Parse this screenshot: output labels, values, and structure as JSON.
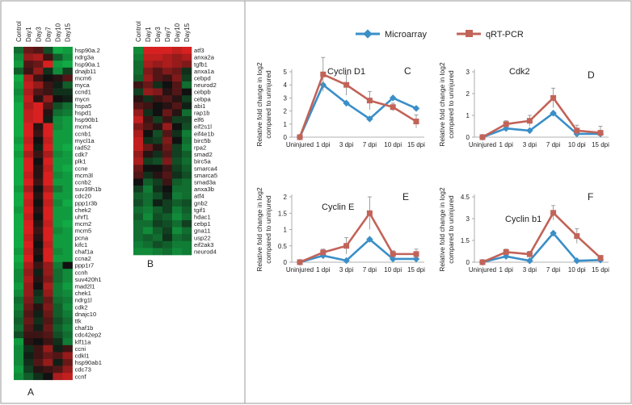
{
  "colors": {
    "microarray": "#3a8fc8",
    "qrtpcr": "#c26358",
    "axis": "#999999",
    "error_bar": "#888888",
    "heat_up": "#ee2222",
    "heat_down": "#11aa44",
    "heat_mid": "#111111"
  },
  "panel_labels": {
    "a": "A",
    "b": "B"
  },
  "legend": {
    "microarray": "Microarray",
    "qrtpcr": "qRT-PCR"
  },
  "heatmap_columns": [
    "Control",
    "Day1",
    "Day3",
    "Day7",
    "Day10",
    "Day15"
  ],
  "heatmap_a": {
    "genes": [
      "hsp90a.2",
      "ndrg3a",
      "hsp90a.1",
      "dnajb11",
      "mcm6",
      "myca",
      "ccnd1",
      "mycn",
      "hspa5",
      "hspd1",
      "hsp90b1",
      "mcm4",
      "ccnb1",
      "mycl1a",
      "rad52",
      "cdk7",
      "plk1",
      "ccne",
      "mcm3l",
      "ccnb2",
      "suv39h1b",
      "cdc20",
      "ppp1r3b",
      "chek2",
      "uhrf1",
      "mcm2",
      "mcm5",
      "pcna",
      "kifc1",
      "chaf1a",
      "ccna2",
      "ppp1r7",
      "ccnh",
      "suv420h1",
      "mad2l1",
      "chek1",
      "ndrg1l",
      "cdk2",
      "dnajc10",
      "ttk",
      "chaf1b",
      "cdc42ep2",
      "klf11a",
      "ccni",
      "cdkl1",
      "hsp90ab1",
      "cdc73",
      "ccnf"
    ],
    "matrix": [
      [
        -0.6,
        0.4,
        0.3,
        -0.4,
        -1.0,
        -0.9
      ],
      [
        -0.8,
        0.6,
        0.7,
        0.2,
        -0.5,
        -0.8
      ],
      [
        -0.9,
        0.3,
        0.4,
        0.9,
        -0.9,
        -1.0
      ],
      [
        -0.5,
        0.2,
        0.6,
        -0.2,
        -0.8,
        -0.3
      ],
      [
        -1.0,
        0.7,
        0.2,
        0.0,
        0.1,
        0.3
      ],
      [
        -0.9,
        0.8,
        0.6,
        0.2,
        -0.1,
        -0.5
      ],
      [
        -0.8,
        0.7,
        0.3,
        0.2,
        -0.2,
        -0.2
      ],
      [
        -0.9,
        0.8,
        0.1,
        0.6,
        0.0,
        -0.1
      ],
      [
        -1.0,
        0.7,
        0.9,
        0.3,
        -0.4,
        -0.6
      ],
      [
        -1.0,
        0.8,
        0.9,
        0.1,
        -0.6,
        -0.7
      ],
      [
        -1.0,
        0.8,
        0.9,
        -0.1,
        -0.8,
        -0.9
      ],
      [
        -1.0,
        0.9,
        0.1,
        0.9,
        -0.8,
        -0.9
      ],
      [
        -1.0,
        0.9,
        0.2,
        0.9,
        -0.9,
        -0.9
      ],
      [
        -0.9,
        0.8,
        0.0,
        0.8,
        -0.9,
        -0.9
      ],
      [
        -1.0,
        0.9,
        -0.1,
        0.9,
        -0.9,
        -1.0
      ],
      [
        -0.9,
        0.7,
        0.2,
        0.7,
        -0.8,
        -0.9
      ],
      [
        -1.0,
        0.9,
        0.0,
        0.9,
        -0.9,
        -0.9
      ],
      [
        -1.0,
        0.9,
        0.1,
        0.8,
        -0.9,
        -1.0
      ],
      [
        -1.0,
        0.8,
        0.1,
        0.9,
        -0.8,
        -0.9
      ],
      [
        -1.0,
        0.9,
        0.2,
        0.9,
        -0.9,
        -0.9
      ],
      [
        -0.9,
        0.7,
        0.0,
        0.7,
        -0.7,
        -0.9
      ],
      [
        -1.0,
        0.9,
        0.1,
        0.9,
        -0.9,
        -0.9
      ],
      [
        -1.0,
        0.8,
        0.0,
        0.8,
        -0.8,
        -1.0
      ],
      [
        -0.9,
        0.9,
        0.1,
        0.9,
        -0.9,
        -0.9
      ],
      [
        -1.0,
        0.8,
        0.0,
        0.9,
        -0.9,
        -0.9
      ],
      [
        -1.0,
        0.9,
        0.1,
        0.8,
        -0.9,
        -1.0
      ],
      [
        -1.0,
        0.9,
        0.2,
        0.9,
        -0.8,
        -0.9
      ],
      [
        -1.0,
        0.8,
        0.1,
        0.9,
        -0.9,
        -0.9
      ],
      [
        -1.0,
        0.9,
        0.0,
        0.8,
        -0.9,
        -0.9
      ],
      [
        -0.9,
        0.8,
        0.1,
        0.9,
        -0.8,
        -0.9
      ],
      [
        -1.0,
        0.9,
        0.0,
        0.9,
        -0.9,
        -0.9
      ],
      [
        -0.9,
        0.7,
        0.2,
        0.6,
        -0.7,
        0.0
      ],
      [
        -0.8,
        0.6,
        -0.1,
        0.6,
        -0.6,
        -0.8
      ],
      [
        -0.8,
        0.7,
        0.1,
        0.5,
        -0.6,
        -0.8
      ],
      [
        -0.9,
        0.6,
        0.0,
        0.7,
        -0.7,
        -0.9
      ],
      [
        -0.8,
        0.6,
        -0.2,
        0.6,
        -0.7,
        -0.8
      ],
      [
        -0.6,
        0.5,
        -0.3,
        0.4,
        -0.6,
        -0.7
      ],
      [
        -0.7,
        0.4,
        0.1,
        0.5,
        -0.5,
        -0.8
      ],
      [
        -0.6,
        0.3,
        -0.1,
        0.4,
        -0.5,
        -0.7
      ],
      [
        -0.5,
        0.4,
        -0.2,
        0.3,
        -0.4,
        -0.6
      ],
      [
        -0.6,
        0.3,
        -0.1,
        0.4,
        -0.5,
        -0.7
      ],
      [
        -0.4,
        0.2,
        0.2,
        0.3,
        -0.4,
        -0.6
      ],
      [
        -0.9,
        0.1,
        0.0,
        0.2,
        -0.2,
        -0.7
      ],
      [
        -0.8,
        -0.2,
        0.2,
        0.6,
        -0.1,
        0.2
      ],
      [
        -0.8,
        -0.1,
        0.2,
        0.4,
        0.3,
        0.6
      ],
      [
        -0.8,
        -0.2,
        0.3,
        0.6,
        -0.1,
        0.4
      ],
      [
        -0.9,
        -0.3,
        0.1,
        0.2,
        0.3,
        0.6
      ],
      [
        -0.8,
        -0.5,
        -0.2,
        0.0,
        0.7,
        0.8
      ]
    ]
  },
  "heatmap_b": {
    "genes": [
      "atf3",
      "anxa2a",
      "tgfb1",
      "anxa1a",
      "cebpd",
      "neurod2",
      "cebpb",
      "cebpa",
      "abi1",
      "rap1b",
      "elf6",
      "eif2s1l",
      "eif4e1b",
      "birc5b",
      "rpa2",
      "smad2",
      "birc5a",
      "smarca4",
      "smarca5",
      "smad3a",
      "anxa3b",
      "atf4",
      "gnb2",
      "tgif1",
      "hdac1",
      "cebp1",
      "gna11",
      "usp22",
      "eif2ak3",
      "neurod4"
    ],
    "matrix": [
      [
        -0.8,
        0.9,
        0.9,
        0.9,
        0.8,
        0.9
      ],
      [
        -0.7,
        0.8,
        0.8,
        0.7,
        0.6,
        0.7
      ],
      [
        -0.6,
        0.7,
        0.6,
        0.7,
        0.6,
        0.5
      ],
      [
        -0.6,
        0.5,
        0.3,
        0.5,
        0.4,
        -0.2
      ],
      [
        -0.5,
        0.6,
        0.3,
        0.2,
        0.5,
        -0.3
      ],
      [
        0.2,
        0.4,
        -0.2,
        0.0,
        0.3,
        -0.6
      ],
      [
        -0.3,
        0.6,
        0.5,
        0.1,
        0.3,
        0.0
      ],
      [
        0.1,
        -0.2,
        0.2,
        0.3,
        0.1,
        -0.3
      ],
      [
        0.3,
        0.2,
        0.0,
        0.1,
        0.3,
        -0.1
      ],
      [
        0.6,
        -0.2,
        0.0,
        0.4,
        0.1,
        -0.6
      ],
      [
        0.8,
        0.2,
        -0.3,
        0.2,
        -0.3,
        -0.3
      ],
      [
        0.5,
        0.3,
        0.1,
        0.6,
        0.0,
        -0.4
      ],
      [
        0.7,
        0.0,
        -0.4,
        0.3,
        -0.2,
        -0.7
      ],
      [
        0.8,
        -0.2,
        -0.3,
        0.5,
        0.0,
        -0.6
      ],
      [
        0.8,
        0.4,
        0.1,
        0.4,
        -0.3,
        -0.7
      ],
      [
        0.6,
        0.1,
        -0.2,
        0.3,
        -0.3,
        -0.5
      ],
      [
        0.7,
        -0.3,
        -0.4,
        0.5,
        -0.4,
        -0.6
      ],
      [
        0.4,
        0.0,
        0.0,
        0.2,
        -0.3,
        -0.5
      ],
      [
        0.3,
        -0.2,
        0.1,
        0.3,
        -0.2,
        -0.4
      ],
      [
        0.0,
        -0.5,
        -0.3,
        0.2,
        -0.5,
        -0.6
      ],
      [
        -0.3,
        -0.7,
        -0.2,
        0.0,
        -0.6,
        -0.6
      ],
      [
        -0.5,
        -0.6,
        -0.4,
        -0.1,
        -0.7,
        -0.6
      ],
      [
        -0.4,
        -0.6,
        -0.1,
        -0.3,
        -0.5,
        -0.4
      ],
      [
        -0.6,
        -0.7,
        -0.5,
        -0.3,
        -0.7,
        -0.5
      ],
      [
        -0.5,
        -0.8,
        -0.4,
        -0.5,
        -0.8,
        -0.6
      ],
      [
        -0.6,
        -0.6,
        -0.3,
        -0.4,
        -0.6,
        -0.3
      ],
      [
        -0.6,
        -0.8,
        -0.5,
        -0.3,
        -0.8,
        -0.6
      ],
      [
        -0.6,
        -0.5,
        -0.6,
        -0.2,
        -0.6,
        -0.5
      ],
      [
        -0.7,
        -0.6,
        -0.4,
        -0.5,
        -0.7,
        -0.7
      ],
      [
        -0.8,
        -0.8,
        -0.7,
        -0.6,
        -0.8,
        -0.7
      ]
    ]
  },
  "chart_data": [
    {
      "id": "C",
      "type": "line",
      "title": "Cyclin D1",
      "ylabel": "Relative fold change in log2 compared to uninjured",
      "categories": [
        "Uninjured",
        "1 dpi",
        "3 dpi",
        "7 dpi",
        "10 dpi",
        "15 dpi"
      ],
      "yticks": [
        0,
        1,
        2,
        3,
        4,
        5
      ],
      "ylim": [
        0,
        5
      ],
      "series": [
        {
          "name": "Microarray",
          "values": [
            0,
            4.0,
            2.6,
            1.4,
            3.0,
            2.2
          ]
        },
        {
          "name": "qRT-PCR",
          "values": [
            0,
            4.8,
            4.0,
            2.8,
            2.3,
            1.2
          ],
          "errors": [
            0,
            1.3,
            0.8,
            0.7,
            0.3,
            0.5
          ]
        }
      ]
    },
    {
      "id": "D",
      "type": "line",
      "title": "Cdk2",
      "ylabel": "Relative fold change in log2 compared to uninjured",
      "categories": [
        "Uninjured",
        "1 dpi",
        "3 dpi",
        "7 dpi",
        "10 dpi",
        "15 dpi"
      ],
      "yticks": [
        0,
        1,
        2,
        3
      ],
      "ylim": [
        0,
        3
      ],
      "series": [
        {
          "name": "Microarray",
          "values": [
            0,
            0.4,
            0.3,
            1.1,
            0.15,
            0.15
          ]
        },
        {
          "name": "qRT-PCR",
          "values": [
            0,
            0.6,
            0.75,
            1.8,
            0.3,
            0.2
          ],
          "errors": [
            0,
            0.15,
            0.25,
            0.45,
            0.25,
            0.3
          ]
        }
      ]
    },
    {
      "id": "E",
      "type": "line",
      "title": "Cyclin E",
      "ylabel": "Relative fold change in log2 compared to uninjured",
      "categories": [
        "Uninjured",
        "1 dpi",
        "3 dpi",
        "7 dpi",
        "10 dpi",
        "15 dpi"
      ],
      "yticks": [
        0,
        0.5,
        1,
        1.5,
        2
      ],
      "ytick_labels": [
        "0",
        "0.5",
        "1",
        "1.5",
        "2"
      ],
      "ylim": [
        0,
        2
      ],
      "series": [
        {
          "name": "Microarray",
          "values": [
            0,
            0.2,
            0.05,
            0.7,
            0.1,
            0.1
          ]
        },
        {
          "name": "qRT-PCR",
          "values": [
            0,
            0.3,
            0.5,
            1.5,
            0.25,
            0.25
          ],
          "errors": [
            0,
            0.1,
            0.25,
            0.5,
            0.1,
            0.15
          ]
        }
      ]
    },
    {
      "id": "F",
      "type": "line",
      "title": "Cyclin b1",
      "ylabel": "Relative fold change in log2 compared to uninjured",
      "categories": [
        "Uninjured",
        "1 dpi",
        "3 dpi",
        "7 dpi",
        "10 dpi",
        "15 dpi"
      ],
      "yticks": [
        0,
        1.5,
        3,
        4.5
      ],
      "ytick_labels": [
        "0",
        "1.5",
        "3",
        "4.5"
      ],
      "ylim": [
        0,
        4.5
      ],
      "series": [
        {
          "name": "Microarray",
          "values": [
            0,
            0.4,
            0.1,
            2.0,
            0.1,
            0.15
          ]
        },
        {
          "name": "qRT-PCR",
          "values": [
            0,
            0.7,
            0.55,
            3.4,
            1.8,
            0.3
          ],
          "errors": [
            0,
            0.2,
            0.2,
            0.5,
            0.5,
            0.15
          ]
        }
      ]
    }
  ]
}
